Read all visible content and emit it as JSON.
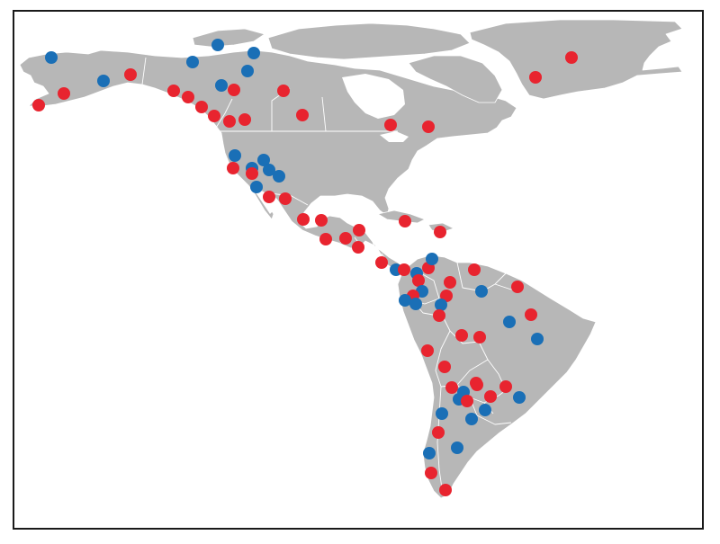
{
  "map": {
    "land_color": "#b7b7b7",
    "water_color": "#ffffff",
    "border_color": "#ffffff",
    "frame_color": "#1a1a1a"
  },
  "legend": {},
  "marker_colors": {
    "red": "#e8242f",
    "blue": "#1a6fb6"
  },
  "markers": [
    {
      "name": "greenland-south",
      "color": "red"
    },
    {
      "name": "greenland-east",
      "color": "red"
    },
    {
      "name": "alaska-west",
      "color": "blue"
    },
    {
      "name": "alaska-southwest",
      "color": "red"
    },
    {
      "name": "alaska-south",
      "color": "red"
    },
    {
      "name": "alaska-interior",
      "color": "blue"
    },
    {
      "name": "yukon",
      "color": "red"
    },
    {
      "name": "arctic-island-1",
      "color": "blue"
    },
    {
      "name": "arctic-island-2",
      "color": "blue"
    },
    {
      "name": "nwt-1",
      "color": "blue"
    },
    {
      "name": "nwt-2",
      "color": "blue"
    },
    {
      "name": "nwt-3",
      "color": "blue"
    },
    {
      "name": "canada-west-1",
      "color": "red"
    },
    {
      "name": "canada-west-2",
      "color": "red"
    },
    {
      "name": "canada-west-3",
      "color": "red"
    },
    {
      "name": "canada-west-4",
      "color": "red"
    },
    {
      "name": "canada-west-5",
      "color": "red"
    },
    {
      "name": "canada-west-6",
      "color": "red"
    },
    {
      "name": "canada-central-1",
      "color": "red"
    },
    {
      "name": "canada-central-2",
      "color": "red"
    },
    {
      "name": "canada-central-3",
      "color": "red"
    },
    {
      "name": "quebec",
      "color": "red"
    },
    {
      "name": "ontario",
      "color": "red"
    },
    {
      "name": "us-west-1",
      "color": "blue"
    },
    {
      "name": "us-west-2",
      "color": "blue"
    },
    {
      "name": "us-west-3",
      "color": "blue"
    },
    {
      "name": "us-west-4",
      "color": "blue"
    },
    {
      "name": "us-west-5",
      "color": "blue"
    },
    {
      "name": "us-west-6",
      "color": "blue"
    },
    {
      "name": "us-west-7",
      "color": "red"
    },
    {
      "name": "us-west-8",
      "color": "red"
    },
    {
      "name": "mexico-north-1",
      "color": "red"
    },
    {
      "name": "mexico-north-2",
      "color": "red"
    },
    {
      "name": "mexico-central-1",
      "color": "red"
    },
    {
      "name": "mexico-central-2",
      "color": "red"
    },
    {
      "name": "mexico-south-1",
      "color": "red"
    },
    {
      "name": "central-america-1",
      "color": "red"
    },
    {
      "name": "central-america-2",
      "color": "red"
    },
    {
      "name": "central-america-3",
      "color": "red"
    },
    {
      "name": "cuba",
      "color": "red"
    },
    {
      "name": "hispaniola",
      "color": "red"
    },
    {
      "name": "panama",
      "color": "red"
    },
    {
      "name": "colombia-1",
      "color": "blue"
    },
    {
      "name": "colombia-2",
      "color": "red"
    },
    {
      "name": "colombia-3",
      "color": "blue"
    },
    {
      "name": "colombia-4",
      "color": "red"
    },
    {
      "name": "colombia-5",
      "color": "blue"
    },
    {
      "name": "colombia-6",
      "color": "red"
    },
    {
      "name": "colombia-7",
      "color": "blue"
    },
    {
      "name": "colombia-8",
      "color": "red"
    },
    {
      "name": "venezuela-1",
      "color": "red"
    },
    {
      "name": "venezuela-2",
      "color": "red"
    },
    {
      "name": "venezuela-3",
      "color": "blue"
    },
    {
      "name": "guyana",
      "color": "red"
    },
    {
      "name": "ecuador-1",
      "color": "blue"
    },
    {
      "name": "ecuador-2",
      "color": "blue"
    },
    {
      "name": "ecuador-3",
      "color": "red"
    },
    {
      "name": "ecuador-4",
      "color": "blue"
    },
    {
      "name": "peru-north",
      "color": "red"
    },
    {
      "name": "peru-north-2",
      "color": "red"
    },
    {
      "name": "brazil-north",
      "color": "red"
    },
    {
      "name": "brazil-amazon",
      "color": "blue"
    },
    {
      "name": "brazil-east",
      "color": "blue"
    },
    {
      "name": "peru-central",
      "color": "red"
    },
    {
      "name": "peru-central-2",
      "color": "red"
    },
    {
      "name": "peru-south",
      "color": "red"
    },
    {
      "name": "peru-south-2",
      "color": "red"
    },
    {
      "name": "bolivia-1",
      "color": "red"
    },
    {
      "name": "bolivia-2",
      "color": "blue"
    },
    {
      "name": "bolivia-3",
      "color": "red"
    },
    {
      "name": "bolivia-4",
      "color": "blue"
    },
    {
      "name": "bolivia-5",
      "color": "red"
    },
    {
      "name": "paraguay-1",
      "color": "red"
    },
    {
      "name": "paraguay-2",
      "color": "red"
    },
    {
      "name": "brazil-south",
      "color": "blue"
    },
    {
      "name": "argentina-north-1",
      "color": "blue"
    },
    {
      "name": "argentina-north-2",
      "color": "blue"
    },
    {
      "name": "argentina-north-3",
      "color": "blue"
    },
    {
      "name": "chile-central",
      "color": "red"
    },
    {
      "name": "argentina-central",
      "color": "blue"
    },
    {
      "name": "chile-south",
      "color": "blue"
    },
    {
      "name": "patagonia-1",
      "color": "red"
    },
    {
      "name": "patagonia-2",
      "color": "red"
    }
  ]
}
